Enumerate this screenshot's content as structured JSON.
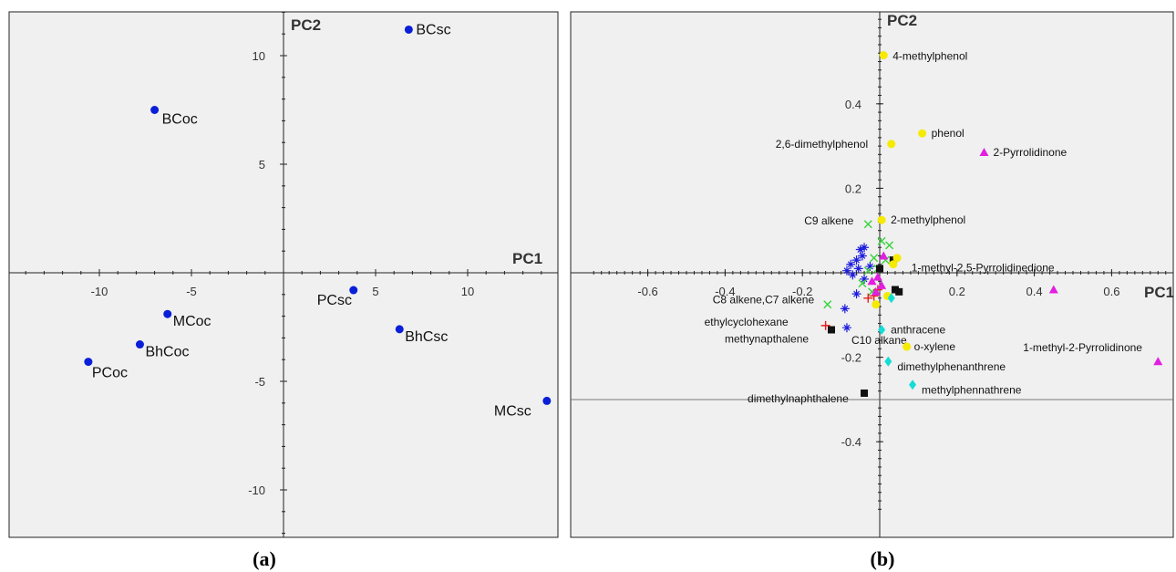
{
  "captions": {
    "a": "(a)",
    "b": "(b)"
  },
  "colors": {
    "blue": "#0a1fd8",
    "yellow": "#f6ea00",
    "magenta": "#e21ee0",
    "green": "#35d43a",
    "navy": "#1c1cde",
    "red": "#e81b1b",
    "black": "#111111",
    "cyan": "#14dcd6"
  },
  "chart_data": [
    {
      "type": "scatter",
      "id": "a",
      "xlabel": "PC1",
      "ylabel": "PC2",
      "xlim": [
        -15.2,
        14.2
      ],
      "ylim": [
        -12.3,
        12.2
      ],
      "xticks": [
        -10,
        -5,
        5,
        10
      ],
      "yticks": [
        10,
        5,
        -5,
        -10
      ],
      "grid": false,
      "points": [
        {
          "label": "BCsc",
          "x": 6.8,
          "y": 11.2
        },
        {
          "label": "BCoc",
          "x": -7.0,
          "y": 7.5
        },
        {
          "label": "PCsc",
          "x": 3.8,
          "y": -0.8
        },
        {
          "label": "MCoc",
          "x": -6.3,
          "y": -1.9
        },
        {
          "label": "BhCsc",
          "x": 6.3,
          "y": -2.6
        },
        {
          "label": "BhCoc",
          "x": -7.8,
          "y": -3.3
        },
        {
          "label": "PCoc",
          "x": -10.6,
          "y": -4.1
        },
        {
          "label": "MCsc",
          "x": 14.3,
          "y": -5.9
        }
      ]
    },
    {
      "type": "scatter",
      "id": "b",
      "xlabel": "PC1",
      "ylabel": "PC2",
      "xlim": [
        -0.75,
        0.78
      ],
      "ylim": [
        -0.58,
        0.62
      ],
      "xticks": [
        -0.6,
        -0.4,
        -0.2,
        0.2,
        0.4,
        0.6
      ],
      "yticks": [
        0.4,
        0.2,
        -0.2,
        -0.4
      ],
      "grid": false,
      "labeled_points": [
        {
          "label": "4-methylphenol",
          "x": 0.01,
          "y": 0.515,
          "color": "yellow",
          "marker": "circle"
        },
        {
          "label": "phenol",
          "x": 0.11,
          "y": 0.33,
          "color": "yellow",
          "marker": "circle"
        },
        {
          "label": "2,6-dimethylphenol",
          "x": 0.03,
          "y": 0.305,
          "color": "yellow",
          "marker": "circle"
        },
        {
          "label": "2-Pyrrolidinone",
          "x": 0.27,
          "y": 0.285,
          "color": "magenta",
          "marker": "triangle"
        },
        {
          "label": "C9 alkene",
          "x": -0.03,
          "y": 0.115,
          "color": "green",
          "marker": "x"
        },
        {
          "label": "2-methylphenol",
          "x": 0.005,
          "y": 0.125,
          "color": "yellow",
          "marker": "circle"
        },
        {
          "label": "1-methyl-2,5-Pyrrolidinedione",
          "x": 0.45,
          "y": -0.04,
          "color": "magenta",
          "marker": "triangle"
        },
        {
          "label": "C8 alkene,C7 alkene",
          "x": -0.135,
          "y": -0.075,
          "color": "green",
          "marker": "x"
        },
        {
          "label": "ethylcyclohexane",
          "x": -0.14,
          "y": -0.125,
          "color": "red",
          "marker": "plus"
        },
        {
          "label": "methynapthalene",
          "x": -0.125,
          "y": -0.135,
          "color": "black",
          "marker": "square"
        },
        {
          "label": "C10 alkane",
          "x": -0.085,
          "y": -0.13,
          "color": "navy",
          "marker": "asterisk"
        },
        {
          "label": "anthracene",
          "x": 0.005,
          "y": -0.135,
          "color": "cyan",
          "marker": "diamond"
        },
        {
          "label": "o-xylene",
          "x": 0.07,
          "y": -0.175,
          "color": "yellow",
          "marker": "circle"
        },
        {
          "label": "1-methyl-2-Pyrrolidinone",
          "x": 0.72,
          "y": -0.21,
          "color": "magenta",
          "marker": "triangle"
        },
        {
          "label": "dimethylphenanthrene",
          "x": 0.022,
          "y": -0.21,
          "color": "cyan",
          "marker": "diamond"
        },
        {
          "label": "methylphennathrene",
          "x": 0.085,
          "y": -0.265,
          "color": "cyan",
          "marker": "diamond"
        },
        {
          "label": "dimethylnaphthalene",
          "x": -0.04,
          "y": -0.285,
          "color": "black",
          "marker": "square"
        }
      ],
      "unlabeled_points": [
        {
          "x": -0.05,
          "y": 0.055,
          "color": "navy",
          "marker": "asterisk"
        },
        {
          "x": -0.04,
          "y": 0.06,
          "color": "navy",
          "marker": "asterisk"
        },
        {
          "x": -0.045,
          "y": 0.04,
          "color": "navy",
          "marker": "asterisk"
        },
        {
          "x": -0.06,
          "y": 0.03,
          "color": "navy",
          "marker": "asterisk"
        },
        {
          "x": -0.075,
          "y": 0.02,
          "color": "navy",
          "marker": "asterisk"
        },
        {
          "x": -0.085,
          "y": 0.005,
          "color": "navy",
          "marker": "asterisk"
        },
        {
          "x": -0.07,
          "y": -0.005,
          "color": "navy",
          "marker": "asterisk"
        },
        {
          "x": -0.055,
          "y": 0.01,
          "color": "navy",
          "marker": "asterisk"
        },
        {
          "x": -0.04,
          "y": -0.015,
          "color": "navy",
          "marker": "asterisk"
        },
        {
          "x": -0.025,
          "y": 0.015,
          "color": "navy",
          "marker": "asterisk"
        },
        {
          "x": -0.09,
          "y": -0.085,
          "color": "navy",
          "marker": "asterisk"
        },
        {
          "x": -0.06,
          "y": -0.05,
          "color": "navy",
          "marker": "asterisk"
        },
        {
          "x": 0.005,
          "y": 0.075,
          "color": "green",
          "marker": "x"
        },
        {
          "x": 0.025,
          "y": 0.065,
          "color": "green",
          "marker": "x"
        },
        {
          "x": -0.015,
          "y": 0.035,
          "color": "green",
          "marker": "x"
        },
        {
          "x": -0.03,
          "y": 0.005,
          "color": "green",
          "marker": "x"
        },
        {
          "x": -0.045,
          "y": -0.025,
          "color": "green",
          "marker": "x"
        },
        {
          "x": -0.02,
          "y": -0.045,
          "color": "green",
          "marker": "x"
        },
        {
          "x": -0.005,
          "y": 0.01,
          "color": "green",
          "marker": "x"
        },
        {
          "x": 0.015,
          "y": 0.03,
          "color": "green",
          "marker": "x"
        },
        {
          "x": -0.03,
          "y": -0.06,
          "color": "red",
          "marker": "plus"
        },
        {
          "x": -0.015,
          "y": -0.055,
          "color": "red",
          "marker": "plus"
        },
        {
          "x": -0.005,
          "y": -0.04,
          "color": "red",
          "marker": "plus"
        },
        {
          "x": 0.035,
          "y": 0.03,
          "color": "black",
          "marker": "square"
        },
        {
          "x": 0.04,
          "y": -0.04,
          "color": "black",
          "marker": "square"
        },
        {
          "x": 0.05,
          "y": -0.045,
          "color": "black",
          "marker": "square"
        },
        {
          "x": 0.0,
          "y": 0.01,
          "color": "black",
          "marker": "square"
        },
        {
          "x": 0.045,
          "y": 0.035,
          "color": "yellow",
          "marker": "circle"
        },
        {
          "x": 0.035,
          "y": 0.02,
          "color": "yellow",
          "marker": "circle"
        },
        {
          "x": 0.02,
          "y": -0.055,
          "color": "yellow",
          "marker": "circle"
        },
        {
          "x": -0.01,
          "y": -0.075,
          "color": "yellow",
          "marker": "circle"
        },
        {
          "x": 0.03,
          "y": -0.06,
          "color": "cyan",
          "marker": "diamond"
        },
        {
          "x": 0.01,
          "y": 0.04,
          "color": "magenta",
          "marker": "triangle"
        },
        {
          "x": -0.005,
          "y": -0.01,
          "color": "magenta",
          "marker": "triangle"
        },
        {
          "x": -0.02,
          "y": -0.02,
          "color": "magenta",
          "marker": "triangle"
        },
        {
          "x": 0.005,
          "y": -0.03,
          "color": "magenta",
          "marker": "triangle"
        },
        {
          "x": -0.01,
          "y": -0.045,
          "color": "magenta",
          "marker": "triangle"
        }
      ]
    }
  ]
}
